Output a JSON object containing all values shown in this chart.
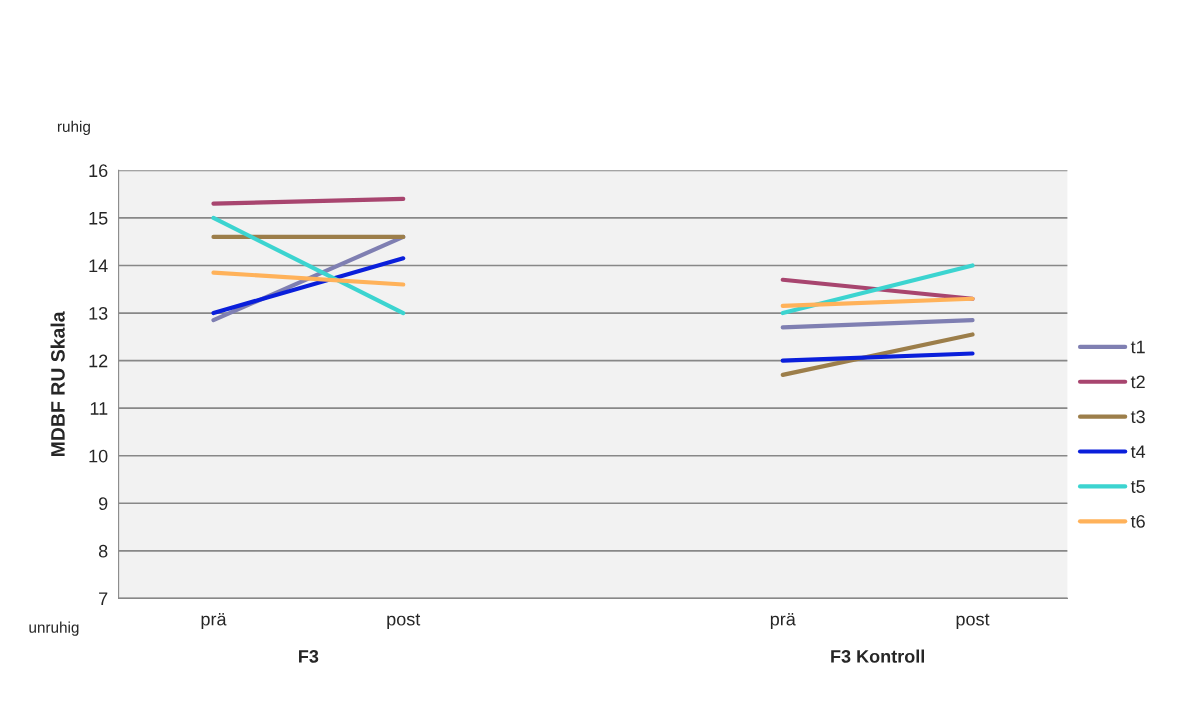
{
  "chart_data": {
    "type": "line",
    "ylabel": "MDBF RU Skala",
    "categories": [
      "prä",
      "post",
      null,
      "prä",
      "post"
    ],
    "series": [
      {
        "name": "t1",
        "color": "#7f7fb2",
        "values": [
          12.85,
          14.6,
          null,
          12.7,
          12.85
        ]
      },
      {
        "name": "t2",
        "color": "#a8456f",
        "values": [
          15.3,
          15.4,
          null,
          13.7,
          13.3
        ]
      },
      {
        "name": "t3",
        "color": "#9c7e4a",
        "values": [
          14.6,
          14.6,
          null,
          11.7,
          12.55
        ]
      },
      {
        "name": "t4",
        "color": "#0a1fdb",
        "values": [
          13.0,
          14.15,
          null,
          12.0,
          12.15
        ]
      },
      {
        "name": "t5",
        "color": "#3cd4d0",
        "values": [
          15.0,
          13.0,
          null,
          13.0,
          14.0
        ]
      },
      {
        "name": "t6",
        "color": "#ffb25a",
        "values": [
          13.85,
          13.6,
          null,
          13.15,
          13.3
        ]
      }
    ],
    "ylim": [
      7,
      16
    ],
    "yticks": [
      7,
      8,
      9,
      10,
      11,
      12,
      13,
      14,
      15,
      16
    ],
    "grid": "y",
    "legend": "right",
    "marker": "none",
    "line_style": "solid",
    "annotations": [
      "ruhig",
      "unruhig",
      "F3",
      "F3 Kontroll"
    ]
  }
}
